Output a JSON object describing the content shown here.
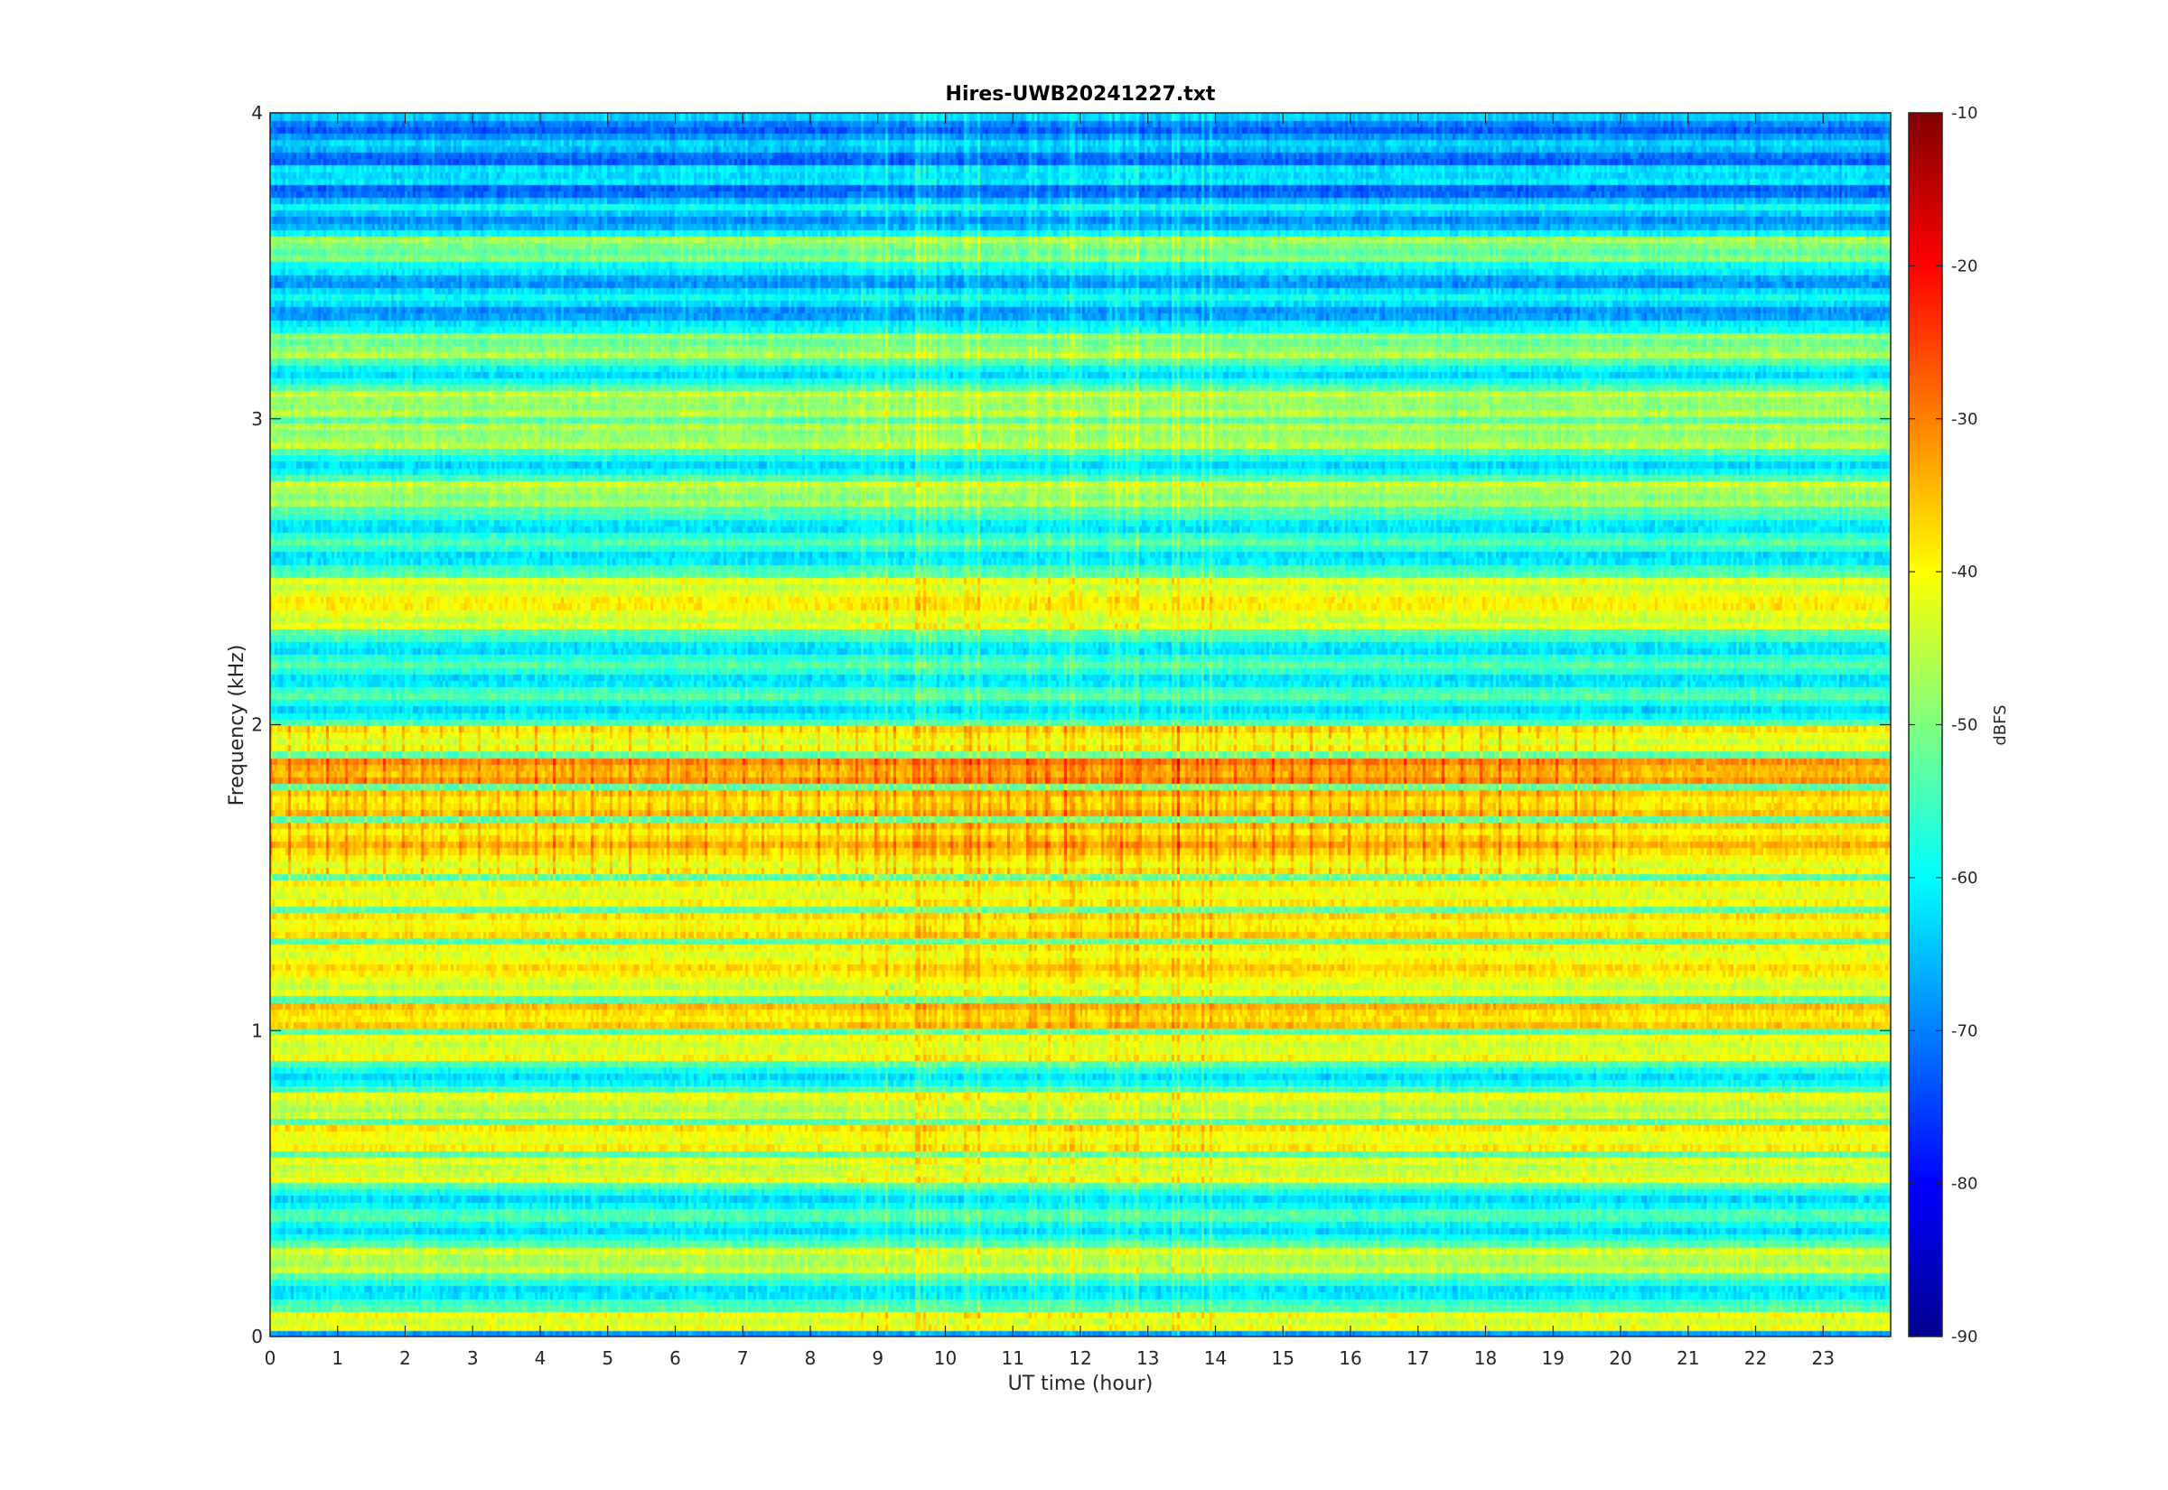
{
  "chart_data": {
    "type": "heatmap",
    "title": "Hires-UWB20241227.txt",
    "xlabel": "UT time (hour)",
    "ylabel": "Frequency (kHz)",
    "xlim": [
      0,
      24
    ],
    "ylim": [
      0,
      4
    ],
    "x_ticks": [
      "0",
      "1",
      "2",
      "3",
      "4",
      "5",
      "6",
      "7",
      "8",
      "9",
      "10",
      "11",
      "12",
      "13",
      "14",
      "15",
      "16",
      "17",
      "18",
      "19",
      "20",
      "21",
      "22",
      "23"
    ],
    "y_ticks": [
      "0",
      "1",
      "2",
      "3",
      "4"
    ],
    "colorbar": {
      "label": "dBFS",
      "colormap": "jet",
      "range": [
        -90,
        -10
      ],
      "ticks": [
        "-10",
        "-20",
        "-30",
        "-40",
        "-50",
        "-60",
        "-70",
        "-80",
        "-90"
      ]
    },
    "band_levels_dbfs": [
      {
        "f_khz": 0.05,
        "level": -44
      },
      {
        "f_khz": 0.25,
        "level": -48
      },
      {
        "f_khz": 0.55,
        "level": -46
      },
      {
        "f_khz": 0.65,
        "level": -43
      },
      {
        "f_khz": 0.75,
        "level": -47
      },
      {
        "f_khz": 0.95,
        "level": -45
      },
      {
        "f_khz": 1.05,
        "level": -40
      },
      {
        "f_khz": 1.15,
        "level": -45
      },
      {
        "f_khz": 1.25,
        "level": -43
      },
      {
        "f_khz": 1.35,
        "level": -42
      },
      {
        "f_khz": 1.45,
        "level": -44
      },
      {
        "f_khz": 1.55,
        "level": -43
      },
      {
        "f_khz": 1.65,
        "level": -40
      },
      {
        "f_khz": 1.75,
        "level": -40
      },
      {
        "f_khz": 1.85,
        "level": -36
      },
      {
        "f_khz": 1.95,
        "level": -44
      },
      {
        "f_khz": 2.35,
        "level": -45
      },
      {
        "f_khz": 2.45,
        "level": -45
      },
      {
        "f_khz": 2.75,
        "level": -50
      },
      {
        "f_khz": 2.95,
        "level": -50
      },
      {
        "f_khz": 3.05,
        "level": -50
      },
      {
        "f_khz": 3.25,
        "level": -52
      },
      {
        "f_khz": 3.55,
        "level": -53
      },
      {
        "f_khz": 3.8,
        "level": -65
      }
    ]
  }
}
